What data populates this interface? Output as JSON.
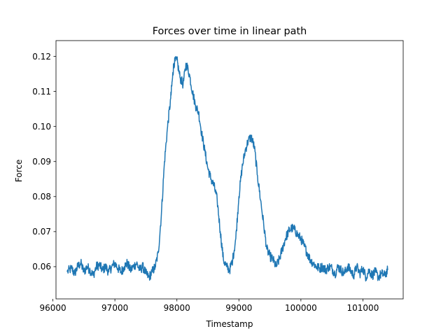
{
  "chart_data": {
    "type": "line",
    "title": "Forces over time in linear path",
    "xlabel": "Timestamp",
    "ylabel": "Force",
    "xlim": [
      96050,
      101650
    ],
    "ylim": [
      0.0508,
      0.1245
    ],
    "xticks": [
      96000,
      97000,
      98000,
      99000,
      100000,
      101000
    ],
    "yticks": [
      0.06,
      0.07,
      0.08,
      0.09,
      0.1,
      0.11,
      0.12
    ],
    "xtick_labels": [
      "96000",
      "97000",
      "98000",
      "99000",
      "100000",
      "101000"
    ],
    "ytick_labels": [
      "0.06",
      "0.07",
      "0.08",
      "0.09",
      "0.10",
      "0.11",
      "0.12"
    ],
    "grid": false,
    "series": [
      {
        "color": "#1f77b4",
        "x": [
          96230,
          96300,
          96350,
          96400,
          96450,
          96500,
          96550,
          96600,
          96650,
          96700,
          96750,
          96800,
          96850,
          96900,
          96950,
          97000,
          97050,
          97100,
          97150,
          97200,
          97250,
          97300,
          97350,
          97400,
          97450,
          97500,
          97550,
          97600,
          97650,
          97700,
          97750,
          97800,
          97850,
          97900,
          97930,
          97950,
          98000,
          98050,
          98100,
          98150,
          98200,
          98250,
          98300,
          98350,
          98400,
          98450,
          98500,
          98550,
          98600,
          98650,
          98700,
          98750,
          98800,
          98850,
          98900,
          98950,
          99000,
          99050,
          99100,
          99150,
          99200,
          99250,
          99300,
          99350,
          99400,
          99450,
          99500,
          99550,
          99600,
          99650,
          99700,
          99750,
          99800,
          99850,
          99900,
          99950,
          100000,
          100050,
          100100,
          100150,
          100200,
          100250,
          100300,
          100350,
          100400,
          100450,
          100500,
          100550,
          100600,
          100650,
          100700,
          100750,
          100800,
          100850,
          100900,
          100950,
          101000,
          101050,
          101100,
          101150,
          101200,
          101250,
          101300,
          101350,
          101400
        ],
        "y": [
          0.0585,
          0.0595,
          0.058,
          0.06,
          0.061,
          0.0585,
          0.06,
          0.059,
          0.0575,
          0.06,
          0.0605,
          0.059,
          0.06,
          0.0585,
          0.06,
          0.061,
          0.0595,
          0.0585,
          0.06,
          0.061,
          0.059,
          0.06,
          0.061,
          0.059,
          0.06,
          0.058,
          0.057,
          0.0585,
          0.06,
          0.064,
          0.075,
          0.09,
          0.1,
          0.108,
          0.114,
          0.118,
          0.119,
          0.114,
          0.112,
          0.118,
          0.115,
          0.11,
          0.106,
          0.104,
          0.098,
          0.093,
          0.088,
          0.085,
          0.083,
          0.079,
          0.07,
          0.062,
          0.06,
          0.059,
          0.062,
          0.068,
          0.08,
          0.088,
          0.093,
          0.096,
          0.097,
          0.094,
          0.086,
          0.079,
          0.072,
          0.065,
          0.063,
          0.062,
          0.06,
          0.062,
          0.065,
          0.068,
          0.07,
          0.071,
          0.0705,
          0.069,
          0.068,
          0.066,
          0.064,
          0.062,
          0.061,
          0.06,
          0.0595,
          0.06,
          0.059,
          0.06,
          0.0595,
          0.058,
          0.06,
          0.059,
          0.058,
          0.06,
          0.059,
          0.0575,
          0.06,
          0.058,
          0.0595,
          0.057,
          0.059,
          0.0575,
          0.0585,
          0.057,
          0.058,
          0.0575,
          0.059
        ]
      }
    ]
  }
}
